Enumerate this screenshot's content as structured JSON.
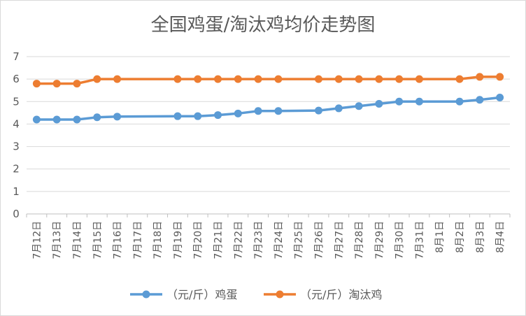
{
  "chart_data": {
    "type": "line",
    "title": "全国鸡蛋/淘汰鸡均价走势图",
    "categories": [
      "7月12日",
      "7月13日",
      "7月14日",
      "7月15日",
      "7月16日",
      "7月17日",
      "7月18日",
      "7月19日",
      "7月20日",
      "7月21日",
      "7月22日",
      "7月23日",
      "7月24日",
      "7月25日",
      "7月26日",
      "7月27日",
      "7月28日",
      "7月29日",
      "7月30日",
      "7月31日",
      "8月1日",
      "8月2日",
      "8月3日",
      "8月4日"
    ],
    "ylim": [
      0,
      7
    ],
    "yticks": [
      0,
      1,
      2,
      3,
      4,
      5,
      6,
      7
    ],
    "grid": true,
    "legend_position": "bottom",
    "series": [
      {
        "name": "（元/斤）鸡蛋",
        "color": "#5B9BD5",
        "values": [
          4.2,
          4.2,
          4.2,
          4.3,
          4.33,
          null,
          null,
          4.35,
          4.35,
          4.4,
          4.47,
          4.58,
          4.58,
          null,
          4.6,
          4.7,
          4.8,
          4.9,
          5.0,
          5.0,
          null,
          5.0,
          5.08,
          5.18
        ]
      },
      {
        "name": "（元/斤）淘汰鸡",
        "color": "#ED7D31",
        "values": [
          5.8,
          5.8,
          5.8,
          6.0,
          6.0,
          null,
          null,
          6.0,
          6.0,
          6.0,
          6.0,
          6.0,
          6.0,
          null,
          6.0,
          6.0,
          6.0,
          6.0,
          6.0,
          6.0,
          null,
          6.0,
          6.1,
          6.1
        ]
      }
    ]
  }
}
